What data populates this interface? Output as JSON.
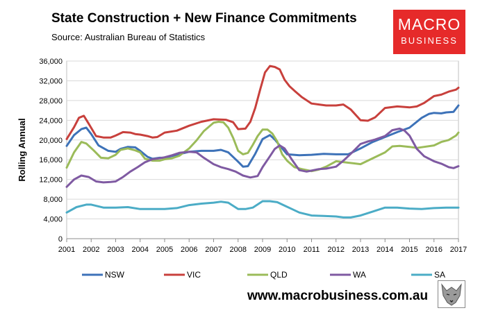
{
  "header": {
    "title": "State Construction + New Finance Commitments",
    "subtitle": "Source: Australian Bureau of Statistics"
  },
  "logo": {
    "line1": "MACRO",
    "line2": "BUSINESS",
    "color": "#e62a2a"
  },
  "footer": {
    "url": "www.macrobusiness.com.au"
  },
  "chart_data": {
    "type": "line",
    "title": "State Construction + New Finance Commitments",
    "xlabel": "",
    "ylabel": "Rolling Annual",
    "xlim": [
      2001,
      2017
    ],
    "ylim": [
      0,
      36000
    ],
    "yticks": [
      0,
      4000,
      8000,
      12000,
      16000,
      20000,
      24000,
      28000,
      32000,
      36000
    ],
    "ytick_labels": [
      "0",
      "4,000",
      "8,000",
      "12,000",
      "16,000",
      "20,000",
      "24,000",
      "28,000",
      "32,000",
      "36,000"
    ],
    "xticks": [
      2001,
      2002,
      2003,
      2004,
      2005,
      2006,
      2007,
      2008,
      2009,
      2010,
      2011,
      2012,
      2013,
      2014,
      2015,
      2016,
      2017
    ],
    "xtick_labels": [
      "2001",
      "2002",
      "2003",
      "2004",
      "2005",
      "2006",
      "2007",
      "2008",
      "2009",
      "2010",
      "2011",
      "2012",
      "2013",
      "2014",
      "2015",
      "2016",
      "2017"
    ],
    "grid": true,
    "legend_position": "bottom",
    "series": [
      {
        "name": "NSW",
        "color": "#3d72b8",
        "x": [
          2001.0,
          2001.3,
          2001.6,
          2001.8,
          2002.0,
          2002.3,
          2002.7,
          2003.0,
          2003.2,
          2003.5,
          2003.8,
          2004.0,
          2004.3,
          2004.5,
          2004.8,
          2005.0,
          2005.5,
          2006.0,
          2006.5,
          2007.0,
          2007.3,
          2007.6,
          2008.0,
          2008.2,
          2008.4,
          2008.7,
          2009.0,
          2009.3,
          2009.5,
          2009.8,
          2010.0,
          2010.5,
          2011.0,
          2011.5,
          2012.0,
          2012.5,
          2013.0,
          2013.5,
          2014.0,
          2014.5,
          2015.0,
          2015.5,
          2015.8,
          2016.0,
          2016.3,
          2016.5,
          2016.8,
          2017.0
        ],
        "y": [
          18800,
          21000,
          22200,
          22500,
          21200,
          18900,
          17800,
          17600,
          18200,
          18600,
          18500,
          17800,
          16600,
          16200,
          16400,
          16400,
          17000,
          17600,
          17800,
          17800,
          18000,
          17500,
          15600,
          14600,
          14700,
          17200,
          20200,
          21000,
          20100,
          18300,
          17100,
          16900,
          17000,
          17200,
          17100,
          17100,
          18300,
          19600,
          20600,
          21600,
          22500,
          24500,
          25300,
          25500,
          25400,
          25600,
          25700,
          27000
        ]
      },
      {
        "name": "VIC",
        "color": "#c8403c",
        "x": [
          2001.0,
          2001.3,
          2001.5,
          2001.7,
          2001.9,
          2002.2,
          2002.5,
          2002.8,
          2003.0,
          2003.3,
          2003.6,
          2003.8,
          2004.0,
          2004.3,
          2004.5,
          2004.7,
          2005.0,
          2005.5,
          2006.0,
          2006.5,
          2007.0,
          2007.5,
          2007.8,
          2008.0,
          2008.3,
          2008.5,
          2008.7,
          2008.9,
          2009.1,
          2009.3,
          2009.5,
          2009.7,
          2009.9,
          2010.1,
          2010.3,
          2010.6,
          2011.0,
          2011.3,
          2011.6,
          2012.0,
          2012.3,
          2012.6,
          2013.0,
          2013.3,
          2013.6,
          2014.0,
          2014.5,
          2015.0,
          2015.3,
          2015.6,
          2016.0,
          2016.3,
          2016.6,
          2016.9,
          2017.0
        ],
        "y": [
          20200,
          22600,
          24500,
          24900,
          23300,
          20800,
          20500,
          20500,
          20900,
          21600,
          21500,
          21200,
          21100,
          20800,
          20500,
          20600,
          21500,
          21900,
          22900,
          23700,
          24200,
          24100,
          23600,
          22200,
          22300,
          23700,
          26500,
          30200,
          33700,
          35000,
          34800,
          34300,
          32200,
          30900,
          30000,
          28700,
          27400,
          27200,
          27000,
          27000,
          27200,
          26200,
          24000,
          23900,
          24600,
          26500,
          26800,
          26600,
          26800,
          27500,
          28900,
          29200,
          29800,
          30200,
          30600
        ]
      },
      {
        "name": "QLD",
        "color": "#9bbb59",
        "x": [
          2001.0,
          2001.3,
          2001.6,
          2001.8,
          2002.1,
          2002.4,
          2002.7,
          2003.0,
          2003.2,
          2003.5,
          2003.8,
          2004.0,
          2004.2,
          2004.5,
          2004.8,
          2005.0,
          2005.3,
          2005.6,
          2006.0,
          2006.3,
          2006.6,
          2007.0,
          2007.2,
          2007.4,
          2007.6,
          2007.8,
          2008.0,
          2008.2,
          2008.4,
          2008.6,
          2008.8,
          2009.0,
          2009.2,
          2009.4,
          2009.6,
          2009.8,
          2010.0,
          2010.3,
          2010.6,
          2011.0,
          2011.3,
          2011.6,
          2012.0,
          2012.5,
          2013.0,
          2013.5,
          2014.0,
          2014.3,
          2014.6,
          2015.0,
          2015.3,
          2015.6,
          2016.0,
          2016.3,
          2016.6,
          2016.9,
          2017.0
        ],
        "y": [
          14400,
          17500,
          19600,
          19300,
          17900,
          16400,
          16300,
          17000,
          18000,
          18300,
          17900,
          17500,
          16200,
          15800,
          15800,
          16100,
          16300,
          16800,
          18300,
          19900,
          21800,
          23500,
          23700,
          23600,
          22500,
          20400,
          17800,
          17100,
          17400,
          19000,
          20800,
          22100,
          22100,
          21300,
          19700,
          17100,
          15800,
          14500,
          14100,
          13700,
          14000,
          14600,
          15700,
          15400,
          15100,
          16300,
          17500,
          18700,
          18800,
          18600,
          18400,
          18600,
          18900,
          19600,
          20000,
          20900,
          21500
        ]
      },
      {
        "name": "WA",
        "color": "#7f5aa2",
        "x": [
          2001.0,
          2001.3,
          2001.6,
          2001.9,
          2002.2,
          2002.5,
          2002.8,
          2003.0,
          2003.3,
          2003.6,
          2003.9,
          2004.2,
          2004.5,
          2004.8,
          2005.0,
          2005.3,
          2005.6,
          2006.0,
          2006.3,
          2006.6,
          2007.0,
          2007.3,
          2007.6,
          2007.9,
          2008.2,
          2008.5,
          2008.8,
          2009.0,
          2009.3,
          2009.5,
          2009.7,
          2009.9,
          2010.2,
          2010.5,
          2010.8,
          2011.0,
          2011.3,
          2011.6,
          2012.0,
          2012.3,
          2012.6,
          2013.0,
          2013.3,
          2013.6,
          2014.0,
          2014.3,
          2014.6,
          2014.8,
          2015.0,
          2015.3,
          2015.6,
          2016.0,
          2016.3,
          2016.6,
          2016.8,
          2017.0
        ],
        "y": [
          10500,
          12000,
          12800,
          12500,
          11600,
          11400,
          11500,
          11600,
          12500,
          13600,
          14500,
          15500,
          16100,
          16300,
          16500,
          16900,
          17400,
          17600,
          17500,
          16400,
          15100,
          14500,
          14100,
          13600,
          12800,
          12400,
          12700,
          14500,
          16700,
          18200,
          18900,
          18300,
          16000,
          13900,
          13600,
          13800,
          14100,
          14200,
          14600,
          15800,
          17200,
          19200,
          19700,
          20100,
          20800,
          22000,
          22300,
          21900,
          20900,
          18200,
          16700,
          15700,
          15200,
          14500,
          14300,
          14700
        ]
      },
      {
        "name": "SA",
        "color": "#4bacc6",
        "x": [
          2001.0,
          2001.4,
          2001.8,
          2002.0,
          2002.5,
          2003.0,
          2003.5,
          2004.0,
          2004.5,
          2005.0,
          2005.5,
          2006.0,
          2006.5,
          2007.0,
          2007.3,
          2007.6,
          2008.0,
          2008.3,
          2008.6,
          2009.0,
          2009.3,
          2009.6,
          2009.9,
          2010.2,
          2010.5,
          2011.0,
          2011.5,
          2012.0,
          2012.3,
          2012.6,
          2013.0,
          2013.5,
          2014.0,
          2014.5,
          2015.0,
          2015.5,
          2016.0,
          2016.5,
          2017.0
        ],
        "y": [
          5300,
          6400,
          6900,
          6900,
          6300,
          6300,
          6400,
          6000,
          6000,
          6000,
          6200,
          6800,
          7100,
          7300,
          7500,
          7300,
          6000,
          6000,
          6300,
          7600,
          7600,
          7400,
          6700,
          6000,
          5300,
          4700,
          4600,
          4500,
          4300,
          4300,
          4700,
          5500,
          6300,
          6300,
          6100,
          6000,
          6200,
          6300,
          6300
        ]
      }
    ]
  }
}
